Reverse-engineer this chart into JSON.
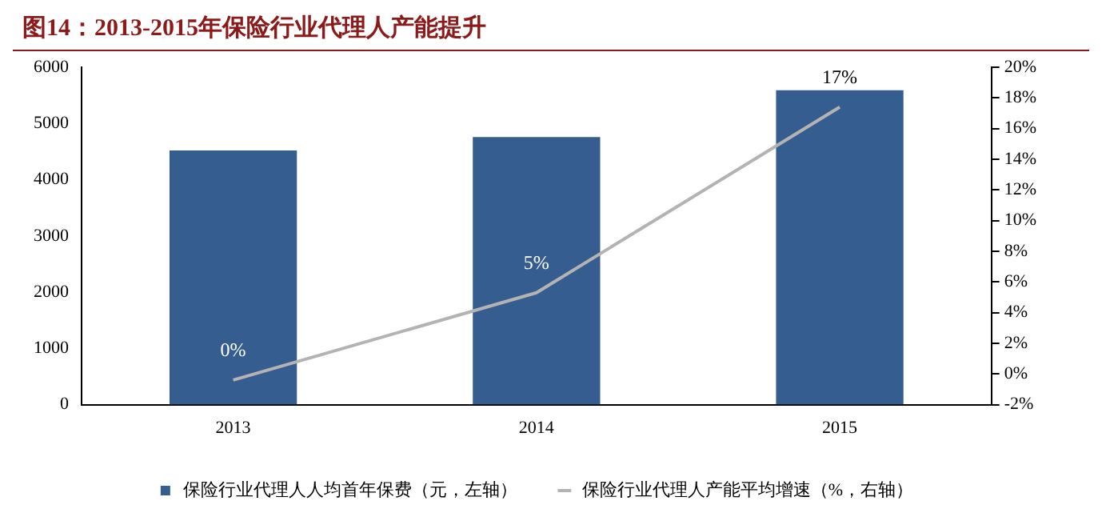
{
  "chart_data": {
    "type": "bar",
    "title": "图14：2013-2015年保险行业代理人产能提升",
    "categories": [
      "2013",
      "2014",
      "2015"
    ],
    "series": [
      {
        "name": "保险行业代理人人均首年保费（元，左轴）",
        "color": "#365d8f",
        "values": [
          4520,
          4760,
          5590
        ]
      },
      {
        "name": "保险行业代理人产能平均增速（%，右轴）",
        "type": "line",
        "axis": "y2",
        "color": "#b3b3b3",
        "values": [
          -0.4,
          5.3,
          17.4
        ],
        "value_labels": [
          "0%",
          "5%",
          "17%"
        ]
      }
    ],
    "ylim": [
      0,
      6000
    ],
    "yticks": [
      0,
      1000,
      2000,
      3000,
      4000,
      5000,
      6000
    ],
    "y2lim": [
      -2,
      20
    ],
    "y2ticks": [
      {
        "value": -2,
        "label": "-2%"
      },
      {
        "value": 0,
        "label": "0%"
      },
      {
        "value": 2,
        "label": "2%"
      },
      {
        "value": 4,
        "label": "4%"
      },
      {
        "value": 6,
        "label": "6%"
      },
      {
        "value": 8,
        "label": "8%"
      },
      {
        "value": 10,
        "label": "10%"
      },
      {
        "value": 12,
        "label": "12%"
      },
      {
        "value": 14,
        "label": "14%"
      },
      {
        "value": 16,
        "label": "16%"
      },
      {
        "value": 18,
        "label": "18%"
      },
      {
        "value": 20,
        "label": "20%"
      }
    ],
    "grid": false,
    "legend": "bottom",
    "marker": "none"
  }
}
